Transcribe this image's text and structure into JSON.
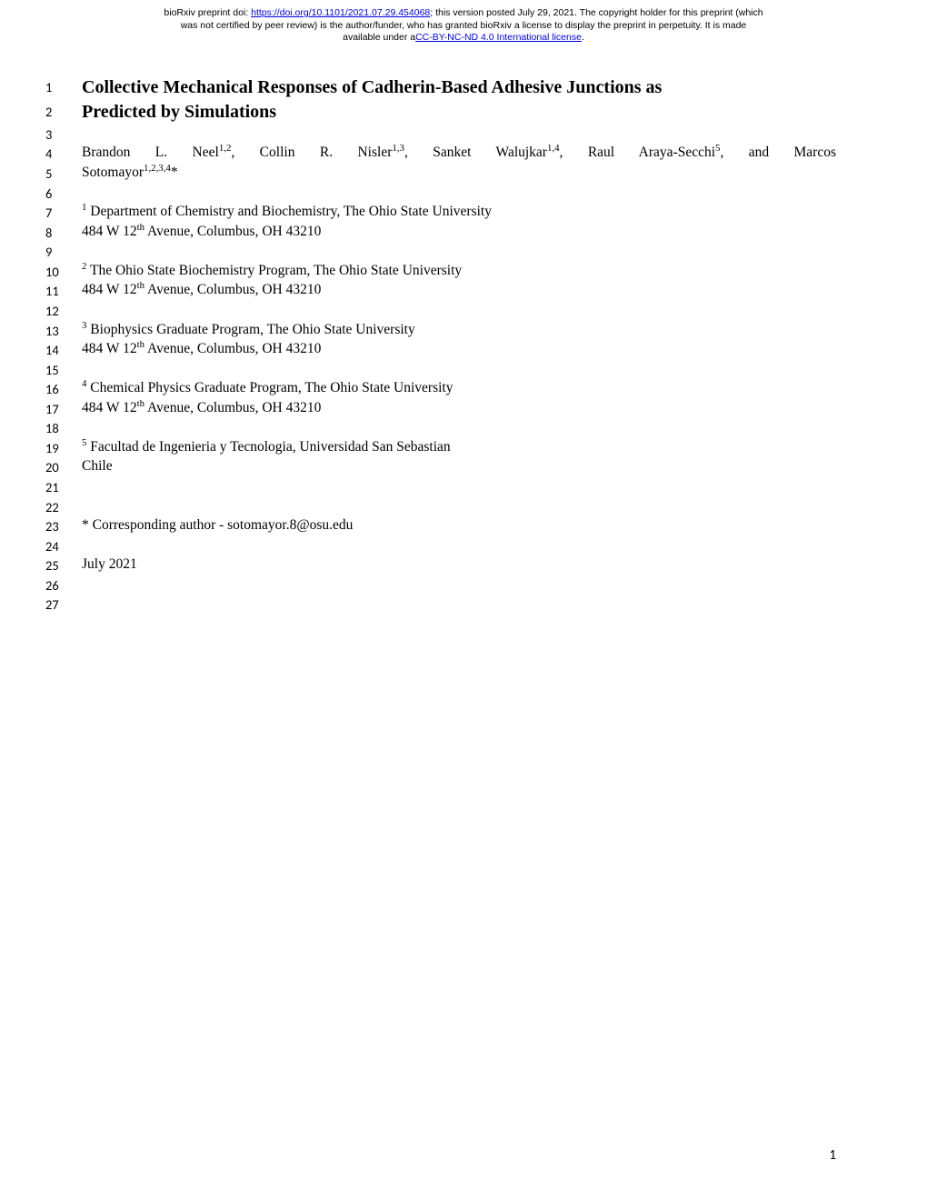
{
  "header": {
    "line1_prefix": "bioRxiv preprint doi: ",
    "doi_url": "https://doi.org/10.1101/2021.07.29.454068",
    "line1_suffix": "; this version posted July 29, 2021. The copyright holder for this preprint (which",
    "line2": "was not certified by peer review) is the author/funder, who has granted bioRxiv a license to display the preprint in perpetuity. It is made",
    "line3_prefix": "available under a",
    "license_text": "CC-BY-NC-ND 4.0 International license",
    "line3_suffix": "."
  },
  "title": {
    "line1": "Collective Mechanical Responses of Cadherin-Based Adhesive Junctions as",
    "line2": "Predicted by Simulations"
  },
  "authors": {
    "a1_name": "Brandon L. Neel",
    "a1_sup": "1,2",
    "a2_name": ", Collin R. Nisler",
    "a2_sup": "1,3",
    "a3_name": ", Sanket Walujkar",
    "a3_sup": "1,4",
    "a4_name": ", Raul Araya-Secchi",
    "a4_sup": "5",
    "a5_name": ", and Marcos",
    "line2_name": "Sotomayor",
    "line2_sup": "1,2,3,4",
    "line2_suffix": "*"
  },
  "affiliations": {
    "a1_sup": "1",
    "a1_text": " Department of Chemistry and Biochemistry, The Ohio State University",
    "a1_addr": "484 W 12",
    "a1_addr_sup": "th",
    "a1_addr_suffix": " Avenue, Columbus, OH 43210",
    "a2_sup": "2",
    "a2_text": " The Ohio State Biochemistry Program, The Ohio State University",
    "a2_addr": "484 W 12",
    "a2_addr_sup": "th",
    "a2_addr_suffix": " Avenue, Columbus, OH 43210",
    "a3_sup": "3",
    "a3_text": " Biophysics Graduate Program, The Ohio State University",
    "a3_addr": "484 W 12",
    "a3_addr_sup": "th",
    "a3_addr_suffix": " Avenue, Columbus, OH 43210",
    "a4_sup": "4",
    "a4_text": " Chemical Physics Graduate Program, The Ohio State University",
    "a4_addr": "484 W 12",
    "a4_addr_sup": "th",
    "a4_addr_suffix": " Avenue, Columbus, OH 43210",
    "a5_sup": "5",
    "a5_text": " Facultad de Ingenieria y Tecnologia, Universidad San Sebastian",
    "a5_addr": "Chile"
  },
  "corresponding": "* Corresponding author - sotomayor.8@osu.edu",
  "date": "July 2021",
  "lineNumbers": {
    "n1": "1",
    "n2": "2",
    "n3": "3",
    "n4": "4",
    "n5": "5",
    "n6": "6",
    "n7": "7",
    "n8": "8",
    "n9": "9",
    "n10": "10",
    "n11": "11",
    "n12": "12",
    "n13": "13",
    "n14": "14",
    "n15": "15",
    "n16": "16",
    "n17": "17",
    "n18": "18",
    "n19": "19",
    "n20": "20",
    "n21": "21",
    "n22": "22",
    "n23": "23",
    "n24": "24",
    "n25": "25",
    "n26": "26",
    "n27": "27"
  },
  "pageNumber": "1"
}
